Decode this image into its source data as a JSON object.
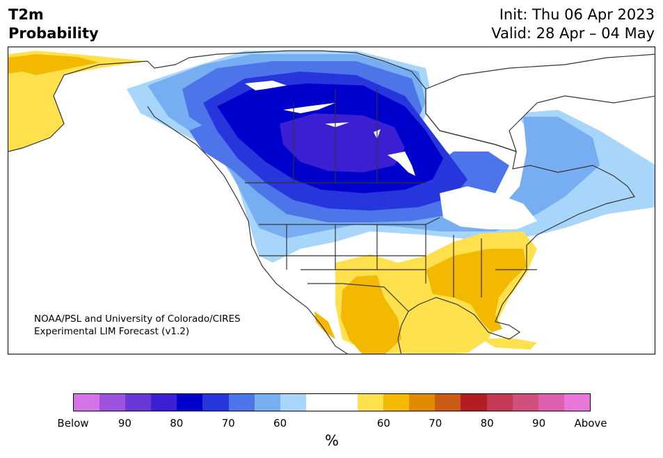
{
  "title": {
    "left_line1": "T2m",
    "left_line2": "Probability",
    "init": "Init: Thu 06 Apr 2023",
    "valid": "Valid: 28 Apr – 04 May"
  },
  "credit": {
    "line1": "NOAA/PSL and University of Colorado/CIRES",
    "line2": "Experimental LIM Forecast (v1.2)"
  },
  "colorbar": {
    "unit": "%",
    "colors": [
      "#d473e6",
      "#9e52e0",
      "#6b38d8",
      "#3a1fd3",
      "#0000cc",
      "#2636dc",
      "#4d74e8",
      "#77aef2",
      "#a8d6fb",
      "#ffffff",
      "#ffffff",
      "#ffe04d",
      "#f3b800",
      "#e08a00",
      "#cb5a14",
      "#b21e24",
      "#c43a54",
      "#d14e7e",
      "#dc5fae",
      "#e875d8"
    ],
    "tick_labels": [
      "Below",
      "90",
      "80",
      "70",
      "60",
      "60",
      "70",
      "80",
      "90",
      "Above"
    ]
  },
  "map": {
    "colors": {
      "blue_lightest": "#a8d6fb",
      "blue_light": "#77aef2",
      "blue_mid": "#4d74e8",
      "blue_strong": "#2636dc",
      "blue_deep": "#0000cc",
      "blue_core": "#3a1fd3",
      "yellow": "#ffe04d",
      "gold": "#f3b800",
      "border": "#333333"
    }
  }
}
